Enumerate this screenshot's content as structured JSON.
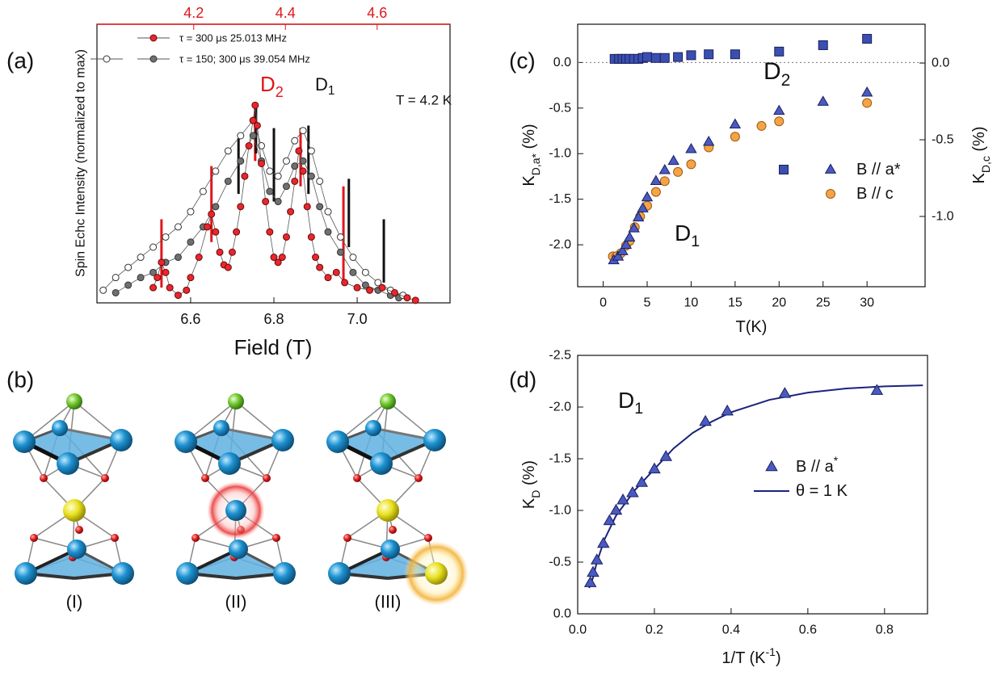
{
  "chart_data": [
    {
      "type": "scatter",
      "panel_label": "(a)",
      "xlabel": "Field (T)",
      "ylabel": "Spin Echc Intensity (normalized to max)",
      "xlim": [
        6.375,
        7.223
      ],
      "xticks": [
        6.6,
        6.8,
        {
          "value": 7,
          "label": "7.0"
        }
      ],
      "x2lim": [
        3.989,
        4.759
      ],
      "x2ticks": [
        4.2,
        4.4,
        4.6
      ],
      "x2_color": "#e0161c",
      "ylim": [
        0,
        1.1
      ],
      "series": [
        {
          "name": "τ = 300 μs 25.013 MHz",
          "color": "#e8262c",
          "edge": "#6a0a0a",
          "line_color": "#555555",
          "marker": "circle",
          "mode": "lines+markers",
          "x": [
            6.51,
            6.52,
            6.53,
            6.54,
            6.55,
            6.57,
            6.59,
            6.6,
            6.62,
            6.64,
            6.65,
            6.66,
            6.67,
            6.68,
            6.69,
            6.7,
            6.71,
            6.72,
            6.73,
            6.74,
            6.75,
            6.755,
            6.76,
            6.77,
            6.78,
            6.79,
            6.8,
            6.81,
            6.82,
            6.83,
            6.84,
            6.85,
            6.86,
            6.87,
            6.88,
            6.89,
            6.9,
            6.91,
            6.93,
            6.95,
            6.97,
            7.0,
            7.03,
            7.06,
            7.09,
            7.12,
            7.14
          ],
          "values": [
            0.06,
            0.1,
            0.16,
            0.12,
            0.06,
            0.03,
            0.05,
            0.1,
            0.18,
            0.3,
            0.35,
            0.28,
            0.2,
            0.15,
            0.14,
            0.2,
            0.28,
            0.38,
            0.5,
            0.62,
            0.72,
            0.78,
            0.7,
            0.55,
            0.4,
            0.28,
            0.18,
            0.16,
            0.18,
            0.26,
            0.36,
            0.48,
            0.6,
            0.52,
            0.38,
            0.26,
            0.18,
            0.14,
            0.1,
            0.12,
            0.08,
            0.06,
            0.05,
            0.06,
            0.04,
            0.02,
            0.01
          ]
        },
        {
          "color": "#ffffff",
          "edge": "#333333",
          "line_color": "#555555",
          "marker": "circle",
          "mode": "lines+markers",
          "x": [
            6.39,
            6.42,
            6.45,
            6.48,
            6.51,
            6.54,
            6.57,
            6.6,
            6.63,
            6.66,
            6.69,
            6.72,
            6.75,
            6.77,
            6.79,
            6.81,
            6.83,
            6.85,
            6.87,
            6.89,
            6.91,
            6.93,
            6.96,
            6.99,
            7.02,
            7.05,
            7.08,
            7.11
          ],
          "values": [
            0.05,
            0.1,
            0.14,
            0.18,
            0.22,
            0.26,
            0.3,
            0.36,
            0.44,
            0.52,
            0.6,
            0.66,
            0.72,
            0.62,
            0.52,
            0.5,
            0.56,
            0.64,
            0.68,
            0.6,
            0.48,
            0.36,
            0.26,
            0.18,
            0.12,
            0.08,
            0.05,
            0.03
          ]
        },
        {
          "name": "τ = 150; 300 μs 39.054 MHz",
          "color": "#707070",
          "edge": "#333333",
          "line_color": "#555555",
          "marker": "circle",
          "mode": "lines+markers",
          "x": [
            6.42,
            6.45,
            6.48,
            6.51,
            6.54,
            6.57,
            6.6,
            6.63,
            6.66,
            6.69,
            6.72,
            6.75,
            6.77,
            6.79,
            6.81,
            6.83,
            6.85,
            6.87,
            6.89,
            6.91,
            6.93,
            6.96,
            6.99,
            7.02,
            7.05,
            7.08,
            7.1
          ],
          "values": [
            0.04,
            0.07,
            0.1,
            0.12,
            0.16,
            0.18,
            0.24,
            0.3,
            0.38,
            0.48,
            0.56,
            0.66,
            0.56,
            0.44,
            0.4,
            0.46,
            0.54,
            0.56,
            0.5,
            0.38,
            0.28,
            0.2,
            0.12,
            0.07,
            0.05,
            0.03,
            0.02
          ]
        }
      ],
      "sticks": [
        {
          "color": "#e0161c",
          "x": [
            6.53,
            6.65,
            6.755,
            6.864,
            6.967
          ],
          "values": [
            0.33,
            0.54,
            0.78,
            0.69,
            0.46
          ],
          "base": [
            0.06,
            0.24,
            0.56,
            0.46,
            0.07
          ]
        },
        {
          "color": "#111111",
          "x": [
            6.715,
            6.757,
            6.8,
            6.883,
            6.98,
            7.064
          ],
          "values": [
            0.65,
            0.79,
            0.69,
            0.7,
            0.49,
            0.33
          ],
          "base": [
            0.43,
            0.59,
            0.4,
            0.43,
            0.22,
            0.08
          ]
        }
      ],
      "annotations": [
        {
          "text": [
            {
              "t": "D"
            },
            {
              "sub": "2"
            }
          ],
          "color": "#e0161c"
        },
        {
          "text": [
            {
              "t": "D"
            },
            {
              "sub": "1"
            }
          ],
          "color": "#111111"
        },
        {
          "text": "T = 4.2 K",
          "color": "#111111"
        }
      ]
    },
    {
      "type": "scatter",
      "panel_label": "(c)",
      "xlabel": "T(K)",
      "ylabel": [
        {
          "t": "K"
        },
        {
          "sub": "D,a*"
        },
        {
          "t": " (%)"
        }
      ],
      "y2label": [
        {
          "t": "K"
        },
        {
          "sub": "D,c"
        },
        {
          "t": " (%)"
        }
      ],
      "xlim": [
        -2.9,
        36.6
      ],
      "xticks": [
        0,
        5,
        10,
        15,
        20,
        25,
        30
      ],
      "ylim": [
        -2.46,
        0.42
      ],
      "yticks": [
        {
          "value": 0,
          "label": "0.0"
        },
        -0.5,
        {
          "value": -1,
          "label": "-1.0"
        },
        -1.5,
        {
          "value": -2,
          "label": "-2.0"
        }
      ],
      "y2lim": [
        -1.458,
        0.253
      ],
      "y2ticks": [
        {
          "value": 0,
          "label": "0.0"
        },
        -0.5,
        {
          "value": -1,
          "label": "-1.0"
        }
      ],
      "zero_line": true,
      "series": [
        {
          "color": "#3a4fb0",
          "edge": "#1a2060",
          "marker": "square",
          "mode": "markers",
          "x": [
            1.3,
            1.8,
            2.2,
            2.6,
            3.0,
            3.5,
            4.0,
            4.5,
            5,
            6,
            7,
            8.5,
            10,
            12,
            15,
            20,
            25,
            30
          ],
          "values": [
            0.04,
            0.04,
            0.04,
            0.04,
            0.04,
            0.04,
            0.04,
            0.05,
            0.06,
            0.05,
            0.05,
            0.06,
            0.08,
            0.09,
            0.09,
            0.12,
            0.19,
            0.26
          ]
        },
        {
          "name": "B // a*",
          "color": "#4a5ac0",
          "edge": "#1a2060",
          "marker": "triangle",
          "mode": "markers",
          "x": [
            1.2,
            1.7,
            2.2,
            2.6,
            3.0,
            3.5,
            4.0,
            4.5,
            5.0,
            6.0,
            7.0,
            8.0,
            10,
            12,
            15,
            20,
            25,
            30
          ],
          "values": [
            -2.17,
            -2.13,
            -2.07,
            -2.0,
            -1.92,
            -1.82,
            -1.7,
            -1.6,
            -1.48,
            -1.3,
            -1.18,
            -1.08,
            -0.95,
            -0.87,
            -0.68,
            -0.53,
            -0.43,
            -0.33
          ]
        },
        {
          "name": "B // c",
          "color": "#f5a445",
          "edge": "#9a5a10",
          "marker": "circle",
          "mode": "markers",
          "axis": "y2",
          "x": [
            1.1,
            1.5,
            2.0,
            2.6,
            3.0,
            3.6,
            4.2,
            5.0,
            6.0,
            7.0,
            8.5,
            10,
            12,
            15,
            18,
            20,
            30
          ],
          "values": [
            -1.26,
            -1.26,
            -1.24,
            -1.19,
            -1.16,
            -1.07,
            -1.0,
            -0.93,
            -0.84,
            -0.77,
            -0.71,
            -0.66,
            -0.55,
            -0.48,
            -0.41,
            -0.38,
            -0.26
          ]
        }
      ],
      "annotations": [
        {
          "text": [
            {
              "t": "D"
            },
            {
              "sub": "2"
            }
          ],
          "color": "#111111"
        },
        {
          "text": [
            {
              "t": "D"
            },
            {
              "sub": "1"
            }
          ],
          "color": "#111111"
        }
      ]
    },
    {
      "type": "scatter",
      "panel_label": "(d)",
      "xlabel": [
        {
          "t": "1/T (K"
        },
        {
          "sup": "-1"
        },
        {
          "t": ")"
        }
      ],
      "ylabel": [
        {
          "t": "K"
        },
        {
          "sub": "D"
        },
        {
          "t": " (%)"
        }
      ],
      "xlim": [
        0,
        0.912
      ],
      "xticks": [
        {
          "value": 0,
          "label": "0.0"
        },
        0.2,
        0.4,
        0.6,
        0.8
      ],
      "ylim": [
        0,
        -2.5
      ],
      "yticks": [
        {
          "value": 0,
          "label": "0.0"
        },
        -0.5,
        {
          "value": -1,
          "label": "-1.0"
        },
        -1.5,
        {
          "value": -2,
          "label": "-2.0"
        },
        -2.5
      ],
      "series": [
        {
          "name": [
            {
              "t": "B // a"
            },
            {
              "sup": "*"
            }
          ],
          "color": "#4a5ac0",
          "edge": "#1a2060",
          "marker": "triangle",
          "mode": "markers",
          "x": [
            0.033,
            0.04,
            0.05,
            0.067,
            0.083,
            0.1,
            0.118,
            0.143,
            0.167,
            0.2,
            0.23,
            0.333,
            0.39,
            0.54,
            0.78
          ],
          "values": [
            -0.3,
            -0.4,
            -0.52,
            -0.68,
            -0.9,
            -1.0,
            -1.1,
            -1.17,
            -1.27,
            -1.4,
            -1.52,
            -1.86,
            -1.96,
            -2.13,
            -2.16
          ]
        },
        {
          "name": "θ = 1 K",
          "color": "#1a237e",
          "mode": "line",
          "x": [
            0.03,
            0.04,
            0.05,
            0.07,
            0.1,
            0.15,
            0.2,
            0.25,
            0.3,
            0.35,
            0.4,
            0.5,
            0.6,
            0.7,
            0.8,
            0.9
          ],
          "values": [
            -0.25,
            -0.35,
            -0.5,
            -0.72,
            -0.95,
            -1.2,
            -1.4,
            -1.6,
            -1.75,
            -1.86,
            -1.95,
            -2.07,
            -2.14,
            -2.18,
            -2.2,
            -2.21
          ]
        }
      ],
      "annotations": [
        {
          "text": [
            {
              "t": "D"
            },
            {
              "sub": "1"
            }
          ],
          "color": "#111111"
        }
      ]
    }
  ],
  "diagram": {
    "panel_label": "(b)",
    "labels": [
      "(I)",
      "(II)",
      "(III)"
    ]
  }
}
